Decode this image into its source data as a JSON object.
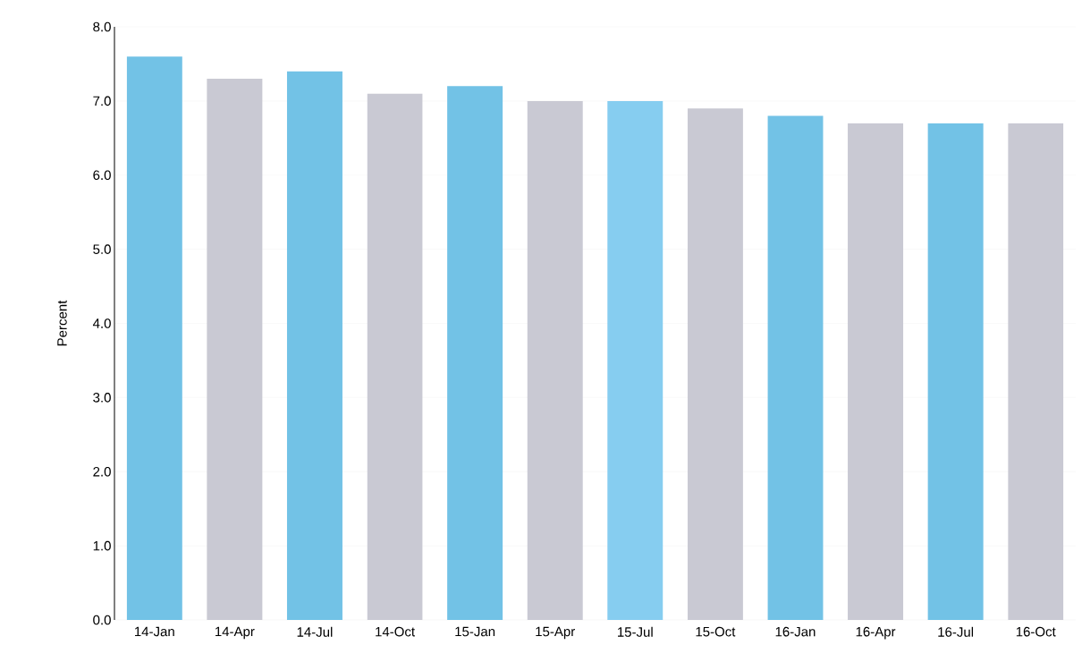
{
  "chart_data": {
    "type": "bar",
    "ylabel": "Percent",
    "categories": [
      "14-Jan",
      "14-Apr",
      "14-Jul",
      "14-Oct",
      "15-Jan",
      "15-Apr",
      "15-Jul",
      "15-Oct",
      "16-Jan",
      "16-Apr",
      "16-Jul",
      "16-Oct"
    ],
    "values": [
      7.6,
      7.3,
      7.4,
      7.1,
      7.2,
      7.0,
      7.0,
      6.9,
      6.8,
      6.7,
      6.7,
      6.7
    ],
    "colors": [
      "#72c2e6",
      "#c9c9d3",
      "#72c2e6",
      "#c9c9d3",
      "#72c2e6",
      "#c9c9d3",
      "#86cdf0",
      "#c9c9d3",
      "#72c2e6",
      "#c9c9d3",
      "#72c2e6",
      "#c9c9d3"
    ],
    "ylim": [
      0,
      8
    ],
    "yticks": [
      {
        "value": 0,
        "label": "0.0"
      },
      {
        "value": 1,
        "label": "1.0"
      },
      {
        "value": 2,
        "label": "2.0"
      },
      {
        "value": 3,
        "label": "3.0"
      },
      {
        "value": 4,
        "label": "4.0"
      },
      {
        "value": 5,
        "label": "5.0"
      },
      {
        "value": 6,
        "label": "6.0"
      },
      {
        "value": 7,
        "label": "7.0"
      },
      {
        "value": 8,
        "label": "8.0"
      }
    ],
    "grid": "y"
  }
}
